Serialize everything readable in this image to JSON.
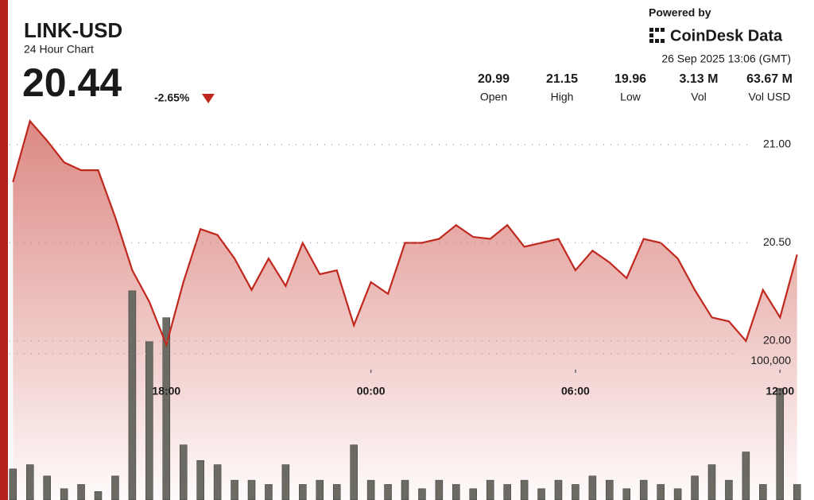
{
  "header": {
    "title": "LINK-USD",
    "subtitle": "24 Hour Chart",
    "price": "20.44",
    "change": "-2.65%",
    "powered_by": "Powered by",
    "brand": "CoinDesk Data",
    "timestamp": "26 Sep 2025 13:06 (GMT)",
    "stats": [
      {
        "value": "20.99",
        "label": "Open"
      },
      {
        "value": "21.15",
        "label": "High"
      },
      {
        "value": "19.96",
        "label": "Low"
      },
      {
        "value": "3.13 M",
        "label": "Vol"
      },
      {
        "value": "63.67 M",
        "label": "Vol USD"
      }
    ]
  },
  "chart_data": {
    "type": "line",
    "x": [
      13.5,
      14,
      14.5,
      15,
      15.5,
      16,
      16.5,
      17,
      17.5,
      18,
      18.5,
      19,
      19.5,
      20,
      20.5,
      21,
      21.5,
      22,
      22.5,
      23,
      23.5,
      24,
      24.5,
      25,
      25.5,
      26,
      26.5,
      27,
      27.5,
      28,
      28.5,
      29,
      29.5,
      30,
      30.5,
      31,
      31.5,
      32,
      32.5,
      33,
      33.5,
      34,
      34.5,
      35,
      35.5,
      36,
      36.5
    ],
    "xlim": [
      13.4,
      36.95
    ],
    "xticks": [
      {
        "value": 18,
        "label": "18:00"
      },
      {
        "value": 24,
        "label": "00:00"
      },
      {
        "value": 30,
        "label": "06:00"
      },
      {
        "value": 36,
        "label": "12:00"
      }
    ],
    "ylim": [
      19.19,
      21.17
    ],
    "yticks": [
      {
        "value": 21,
        "label": "21.00"
      },
      {
        "value": 20.5,
        "label": "20.50"
      },
      {
        "value": 20,
        "label": "20.00"
      }
    ],
    "y2lim": [
      0,
      275000
    ],
    "y2ticks": [
      {
        "value": 100000,
        "label": "100,000"
      }
    ],
    "grid": true,
    "series": [
      {
        "color": "#c0281e",
        "values": [
          20.81,
          21.12,
          21.02,
          20.91,
          20.87,
          20.87,
          20.63,
          20.36,
          20.2,
          19.98,
          20.3,
          20.57,
          20.54,
          20.42,
          20.26,
          20.42,
          20.28,
          20.5,
          20.34,
          20.36,
          20.08,
          20.3,
          20.24,
          20.5,
          20.5,
          20.52,
          20.59,
          20.53,
          20.52,
          20.59,
          20.48,
          20.5,
          20.52,
          20.36,
          20.46,
          20.4,
          20.32,
          20.52,
          20.5,
          20.42,
          20.26,
          20.12,
          20.1,
          20,
          20.26,
          20.12,
          20.44
        ]
      },
      {
        "type": "bar",
        "axis": "y2",
        "color": "#6b6b63",
        "values": [
          22000,
          25000,
          17000,
          8000,
          11000,
          6000,
          17000,
          148000,
          112000,
          129000,
          39000,
          28000,
          25000,
          14000,
          14000,
          11000,
          25000,
          11000,
          14000,
          11000,
          39000,
          14000,
          11000,
          14000,
          8000,
          14000,
          11000,
          8000,
          14000,
          11000,
          14000,
          8000,
          14000,
          11000,
          17000,
          14000,
          8000,
          14000,
          11000,
          8000,
          17000,
          25000,
          14000,
          34000,
          11000,
          79000,
          11000
        ]
      }
    ]
  }
}
